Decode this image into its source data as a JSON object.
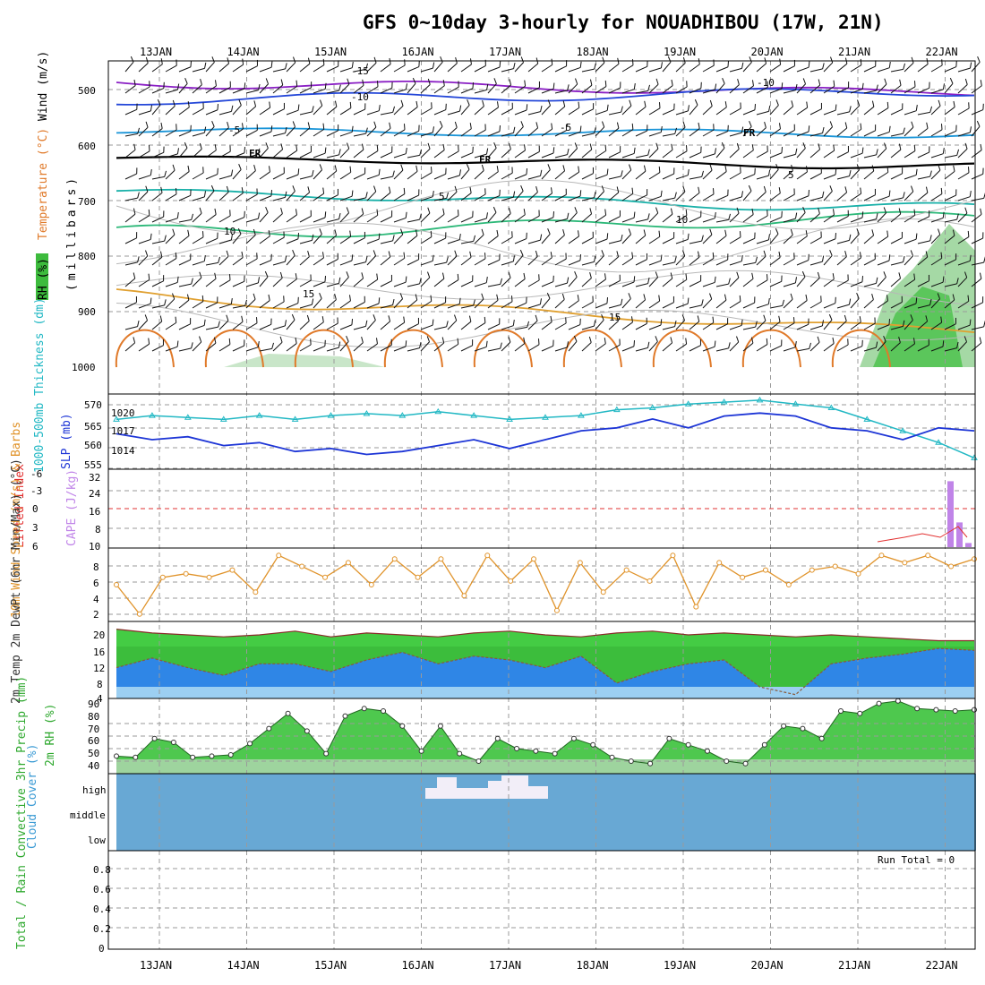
{
  "header": {
    "title": "GFS 0~10day 3-hourly for NOUADHIBOU (17W, 21N)"
  },
  "dates": [
    "13JAN",
    "14JAN",
    "15JAN",
    "16JAN",
    "17JAN",
    "18JAN",
    "19JAN",
    "20JAN",
    "21JAN",
    "22JAN"
  ],
  "colors": {
    "sky_blue": "#68a8d4",
    "cloud": "#f2eef8",
    "temp_fill": "#44cc44",
    "dewpt_fill": "#2f86e6",
    "slp_line": "#1d35d6",
    "thick_line": "#22b8c4",
    "cape_bar": "#c084e8",
    "lifted": "#e23030",
    "wind_speed": "#e0932a"
  },
  "panels": {
    "upper": {
      "ylabels": {
        "rh": "RH (%)",
        "temp": "Temperature (°C)",
        "wind": "Wind (m/s)",
        "mb": "(millibars)"
      },
      "ticks": [
        "500",
        "600",
        "700",
        "800",
        "900",
        "1000"
      ],
      "contour_labels": {
        "m15": "-15",
        "m10": "-10",
        "m5": "-5",
        "fr": "FR",
        "p5": "5",
        "p10": "10",
        "p15": "15",
        "p10b": "10"
      }
    },
    "slp": {
      "ylabel_thick": "1000-500mb Thickness (dm)",
      "ylabel_slp": "SLP (mb)",
      "left_ticks": [
        "570",
        "565",
        "560",
        "555"
      ],
      "right_ticks": [
        "1020",
        "1017",
        "1014"
      ]
    },
    "cape": {
      "ylabel_li": "Lifted Index",
      "ylabel_cape": "CAPE (J/kg)",
      "li_ticks": [
        "-6",
        "-3",
        "0",
        "3",
        "6"
      ],
      "cape_ticks": [
        "32",
        "24",
        "16",
        "8",
        "10"
      ]
    },
    "wind": {
      "ylabel": "10m Wind Speed (m/s) & Barbs",
      "ticks": [
        "8",
        "6",
        "4",
        "2"
      ]
    },
    "temp": {
      "ylabel": "2m Temp 2m DewPt (6hr Min/Max) (°C)",
      "ticks": [
        "20",
        "16",
        "12",
        "8",
        "4"
      ]
    },
    "rh": {
      "ylabel": "2m RH (%)",
      "ticks": [
        "90",
        "80",
        "70",
        "60",
        "50",
        "40"
      ]
    },
    "cloud": {
      "ylabel": "Cloud Cover (%)",
      "levels": [
        "high",
        "middle",
        "low"
      ]
    },
    "precip": {
      "ylabel": "Total / Rain Convective 3hr Precip (mm)",
      "ticks": [
        "0.8",
        "0.6",
        "0.4",
        "0.2",
        "0"
      ],
      "run_total": "Run Total = 0"
    }
  },
  "chart_data": {
    "type": "line",
    "title": "GFS 0~10day 3-hourly for NOUADHIBOU (17W, 21N)",
    "x": [
      "13JAN",
      "14JAN",
      "15JAN",
      "16JAN",
      "17JAN",
      "18JAN",
      "19JAN",
      "20JAN",
      "21JAN",
      "22JAN"
    ],
    "slp_mb": [
      1017,
      1016,
      1016.5,
      1015,
      1015.5,
      1014,
      1014.5,
      1013.5,
      1014,
      1015,
      1016,
      1014.5,
      1016,
      1017.5,
      1018,
      1019.5,
      1018,
      1020,
      1020.5,
      1020,
      1018,
      1017.5,
      1016,
      1018,
      1017.5
    ],
    "thickness_dm": [
      567,
      568,
      567.5,
      567,
      568,
      567,
      568,
      568.5,
      568,
      569,
      568,
      567,
      567.5,
      568,
      569.5,
      570,
      571,
      571.5,
      572,
      571,
      570,
      567,
      564,
      561,
      557
    ],
    "wind_speed_ms": [
      5,
      1,
      6,
      6.5,
      6,
      7,
      4,
      9,
      7.5,
      6,
      8,
      5,
      8.5,
      6,
      8.5,
      3.5,
      9,
      5.5,
      8.5,
      1.5,
      8,
      4,
      7,
      5.5,
      9,
      2,
      8,
      6,
      7,
      5,
      7,
      7.5,
      6.5,
      9,
      8,
      9,
      7.5,
      8.5
    ],
    "temp_2m_C": [
      20,
      19,
      18.5,
      18,
      18.5,
      19.5,
      18,
      19,
      18.5,
      18,
      19,
      19.5,
      18.5,
      18,
      19,
      19.5,
      18.5,
      19,
      18.5,
      18,
      18.5,
      18,
      17.5,
      17,
      17
    ],
    "dewpt_2m_C": [
      10,
      12.5,
      10,
      8,
      11,
      11,
      9,
      12,
      14,
      11,
      13,
      12,
      10,
      13,
      6,
      9,
      11,
      12,
      5,
      3,
      11,
      12.5,
      13.5,
      15,
      14.5
    ],
    "rh_2m_pct": [
      46,
      45,
      60,
      57,
      45,
      46,
      47,
      56,
      68,
      80,
      66,
      48,
      78,
      84,
      82,
      70,
      50,
      70,
      48,
      42,
      60,
      52,
      50,
      48,
      60,
      55,
      45,
      42,
      40,
      60,
      55,
      50,
      42,
      40,
      55,
      70,
      68,
      60,
      82,
      80,
      88,
      90,
      84,
      83,
      82,
      83
    ],
    "cape_Jkg_22JAN": [
      32,
      12,
      2
    ],
    "precip_3hr_mm": 0,
    "precip_run_total_mm": 0
  }
}
